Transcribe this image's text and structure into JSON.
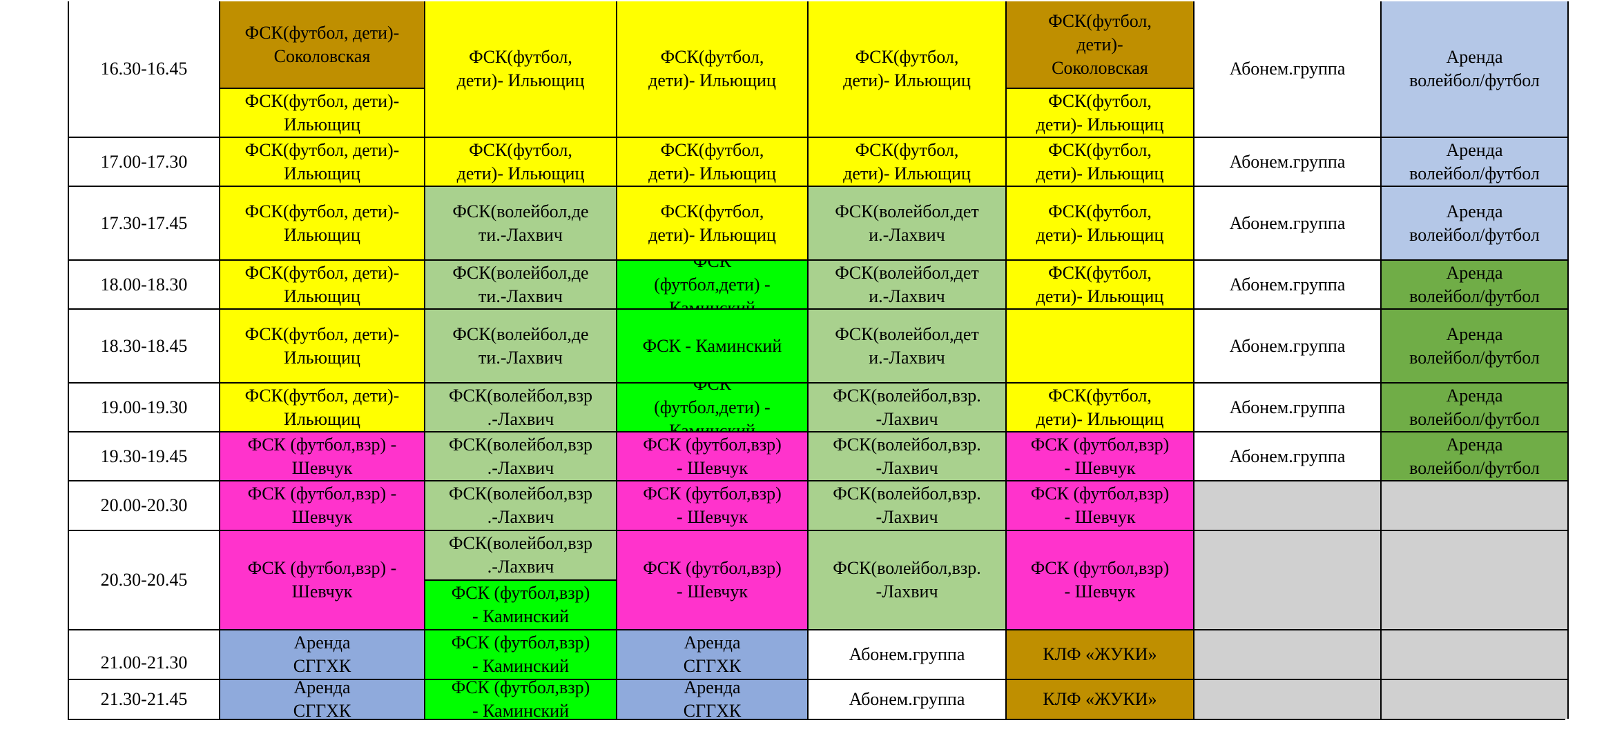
{
  "schedule": {
    "rows": [
      {
        "time": "16.30-16.45",
        "slots": [
          {
            "upper": "ФСК(футбол, дети)-\nСоколовская",
            "lower": "ФСК(футбол, дети)-\nИльющиц"
          },
          {
            "text": "ФСК(футбол,\nдети)- Ильющиц"
          },
          {
            "text": "ФСК(футбол,\nдети)- Ильющиц"
          },
          {
            "text": "ФСК(футбол,\nдети)- Ильющиц"
          },
          {
            "upper": "ФСК(футбол,\nдети)-\nСоколовская",
            "lower": "ФСК(футбол,\nдети)- Ильющиц"
          },
          {
            "text": "Абонем.группа"
          },
          {
            "text": "Аренда\nволейбол/футбол"
          }
        ]
      },
      {
        "time": "17.00-17.30",
        "slots": [
          {
            "text": "ФСК(футбол, дети)-\nИльющиц"
          },
          {
            "text": "ФСК(футбол,\nдети)- Ильющиц"
          },
          {
            "text": "ФСК(футбол,\nдети)- Ильющиц"
          },
          {
            "text": "ФСК(футбол,\nдети)- Ильющиц"
          },
          {
            "text": "ФСК(футбол,\nдети)- Ильющиц"
          },
          {
            "text": "Абонем.группа"
          },
          {
            "text": "Аренда\nволейбол/футбол"
          }
        ]
      },
      {
        "time": "17.30-17.45",
        "slots": [
          {
            "text": "ФСК(футбол, дети)-\nИльющиц"
          },
          {
            "text": "ФСК(волейбол,де\nти.-Лахвич"
          },
          {
            "text": "ФСК(футбол,\nдети)- Ильющиц"
          },
          {
            "text": "ФСК(волейбол,дет\nи.-Лахвич"
          },
          {
            "text": "ФСК(футбол,\nдети)- Ильющиц"
          },
          {
            "text": "Абонем.группа"
          },
          {
            "text": "Аренда\nволейбол/футбол"
          }
        ]
      },
      {
        "time": "18.00-18.30",
        "slots": [
          {
            "text": "ФСК(футбол, дети)-\nИльющиц"
          },
          {
            "text": "ФСК(волейбол,де\nти.-Лахвич"
          },
          {
            "text": "ФСК\n(футбол,дети) -\nКаминский"
          },
          {
            "text": "ФСК(волейбол,дет\nи.-Лахвич"
          },
          {
            "text": "ФСК(футбол,\nдети)- Ильющиц"
          },
          {
            "text": "Абонем.группа"
          },
          {
            "text": "Аренда\nволейбол/футбол"
          }
        ]
      },
      {
        "time": "18.30-18.45",
        "slots": [
          {
            "text": "ФСК(футбол, дети)-\nИльющиц"
          },
          {
            "text": "ФСК(волейбол,де\nти.-Лахвич"
          },
          {
            "text": "ФСК - Каминский"
          },
          {
            "text": "ФСК(волейбол,дет\nи.-Лахвич"
          },
          {
            "text": ""
          },
          {
            "text": "Абонем.группа"
          },
          {
            "text": "Аренда\nволейбол/футбол"
          }
        ]
      },
      {
        "time": "19.00-19.30",
        "slots": [
          {
            "text": "ФСК(футбол, дети)-\nИльющиц"
          },
          {
            "text": "ФСК(волейбол,взр\n.-Лахвич"
          },
          {
            "text": "ФСК\n(футбол,дети) -\nКаминский"
          },
          {
            "text": "ФСК(волейбол,взр.\n-Лахвич"
          },
          {
            "text": "ФСК(футбол,\nдети)- Ильющиц"
          },
          {
            "text": "Абонем.группа"
          },
          {
            "text": "Аренда\nволейбол/футбол"
          }
        ]
      },
      {
        "time": "19.30-19.45",
        "slots": [
          {
            "text": "ФСК (футбол,взр) -\nШевчук"
          },
          {
            "text": "ФСК(волейбол,взр\n.-Лахвич"
          },
          {
            "text": "ФСК (футбол,взр)\n- Шевчук"
          },
          {
            "text": "ФСК(волейбол,взр.\n-Лахвич"
          },
          {
            "text": "ФСК (футбол,взр)\n- Шевчук"
          },
          {
            "text": "Абонем.группа"
          },
          {
            "text": "Аренда\nволейбол/футбол"
          }
        ]
      },
      {
        "time": "20.00-20.30",
        "slots": [
          {
            "text": "ФСК (футбол,взр) -\nШевчук"
          },
          {
            "text": "ФСК(волейбол,взр\n.-Лахвич"
          },
          {
            "text": "ФСК (футбол,взр)\n- Шевчук"
          },
          {
            "text": "ФСК(волейбол,взр.\n-Лахвич"
          },
          {
            "text": "ФСК (футбол,взр)\n- Шевчук"
          },
          {
            "text": ""
          },
          {
            "text": ""
          }
        ]
      },
      {
        "time": "20.30-20.45",
        "slots": [
          {
            "text": "ФСК (футбол,взр) -\nШевчук"
          },
          {
            "upper": "ФСК(волейбол,взр\n.-Лахвич",
            "lower": "ФСК (футбол,взр)\n- Каминский"
          },
          {
            "text": "ФСК (футбол,взр)\n- Шевчук"
          },
          {
            "text": "ФСК(волейбол,взр.\n-Лахвич"
          },
          {
            "text": "ФСК (футбол,взр)\n- Шевчук"
          },
          {
            "text": ""
          },
          {
            "text": ""
          }
        ]
      },
      {
        "time": "21.00-21.30",
        "slots": [
          {
            "text": "Аренда\nСГГХК"
          },
          {
            "text": "ФСК (футбол,взр)\n- Каминский"
          },
          {
            "text": "Аренда\nСГГХК"
          },
          {
            "text": "Абонем.группа"
          },
          {
            "text": "КЛФ «ЖУКИ»"
          },
          {
            "text": ""
          },
          {
            "text": ""
          }
        ]
      },
      {
        "time": "21.30-21.45",
        "slots": [
          {
            "text": "Аренда\nСГГХК"
          },
          {
            "text": "ФСК (футбол,взр)\n- Каминский"
          },
          {
            "text": "Аренда\nСГГХК"
          },
          {
            "text": "Абонем.группа"
          },
          {
            "text": "КЛФ «ЖУКИ»"
          },
          {
            "text": ""
          },
          {
            "text": ""
          }
        ]
      }
    ]
  }
}
